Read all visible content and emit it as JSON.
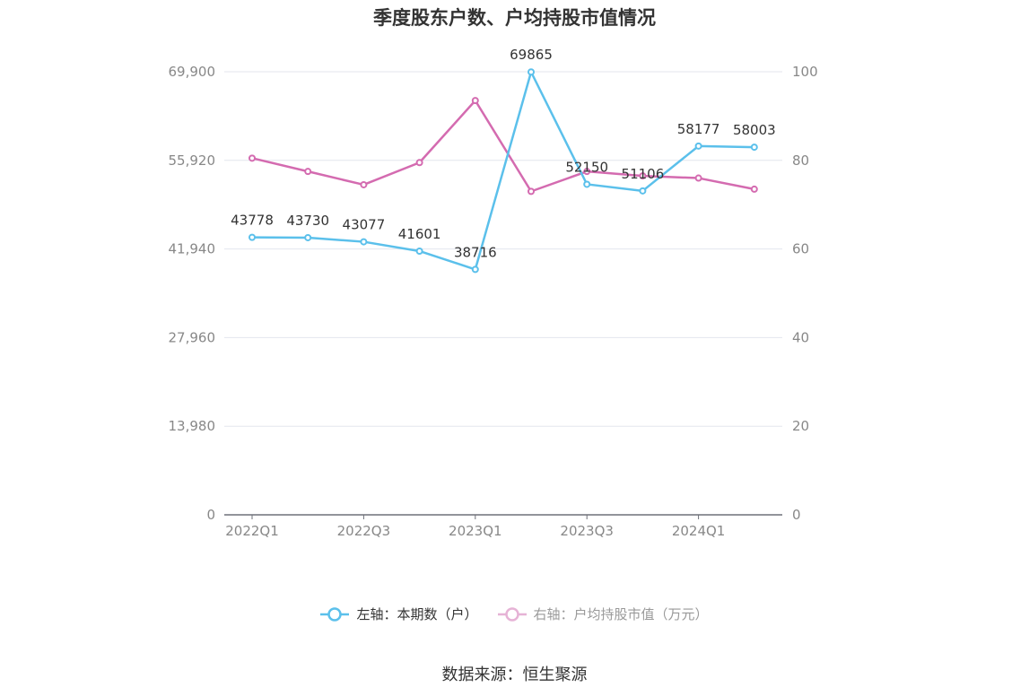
{
  "chart_data": {
    "type": "line",
    "title": "季度股东户数、户均持股市值情况",
    "categories": [
      "2022Q1",
      "2022Q2",
      "2022Q3",
      "2022Q4",
      "2023Q1",
      "2023Q2",
      "2023Q3",
      "2023Q4",
      "2024Q1",
      "2024Q2"
    ],
    "x_tick_labels": [
      "2022Q1",
      "2022Q3",
      "2023Q1",
      "2023Q3",
      "2024Q1"
    ],
    "y_left": {
      "ticks": [
        "0",
        "13,980",
        "27,960",
        "41,940",
        "55,920",
        "69,900"
      ],
      "range": [
        0,
        69900
      ]
    },
    "y_right": {
      "ticks": [
        "0",
        "20",
        "40",
        "60",
        "80",
        "100"
      ],
      "range": [
        0,
        100
      ]
    },
    "series": [
      {
        "name": "左轴：本期数（户）",
        "axis": "left",
        "color": "#5bc0eb",
        "values": [
          43778,
          43730,
          43077,
          41601,
          38716,
          69865,
          52150,
          51106,
          58177,
          58003
        ],
        "labels": [
          "43778",
          "43730",
          "43077",
          "41601",
          "38716",
          "69865",
          "52150",
          "51106",
          "58177",
          "58003"
        ]
      },
      {
        "name": "右轴：户均持股市值（万元）",
        "axis": "right",
        "color": "#d46bb0",
        "values": [
          80.5,
          77.5,
          74.5,
          79.5,
          93.5,
          73.0,
          77.5,
          76.5,
          76.0,
          73.5
        ]
      }
    ],
    "grid": true,
    "legend_position": "bottom"
  },
  "source": "数据来源：恒生聚源"
}
